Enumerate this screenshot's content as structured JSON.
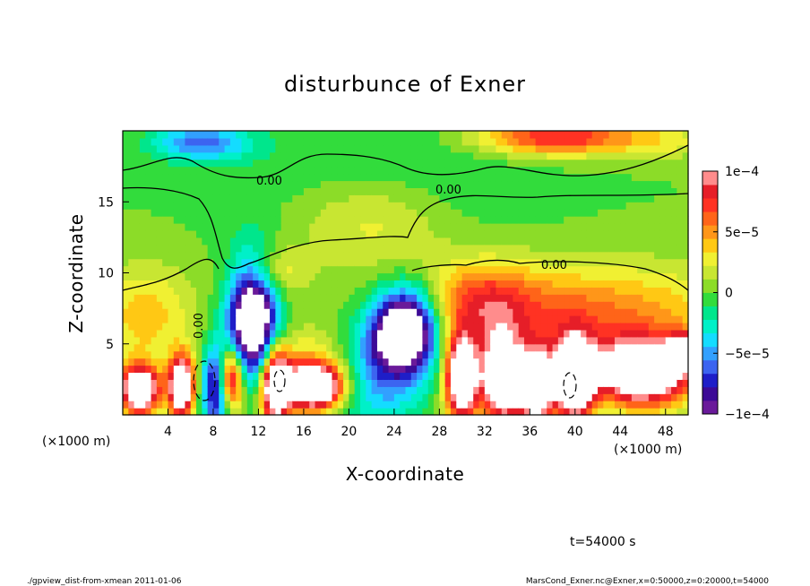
{
  "chart_data": {
    "type": "heatmap",
    "title": "disturbunce of Exner",
    "xlabel": "X-coordinate",
    "ylabel": "Z-coordinate",
    "x_unit": "(×1000 m)",
    "y_unit": "(×1000 m)",
    "xlim": [
      0,
      50
    ],
    "ylim": [
      0,
      20
    ],
    "x_ticks": [
      4,
      8,
      12,
      16,
      20,
      24,
      28,
      32,
      36,
      40,
      44,
      48
    ],
    "y_ticks": [
      5,
      10,
      15
    ],
    "colorbar": {
      "range": [
        -0.0001,
        0.0001
      ],
      "ticks": [
        {
          "value": 0.0001,
          "label": "1e−4"
        },
        {
          "value": 5e-05,
          "label": "5e−5"
        },
        {
          "value": 0,
          "label": "0"
        },
        {
          "value": -5e-05,
          "label": "−5e−5"
        },
        {
          "value": -0.0001,
          "label": "−1e−4"
        }
      ],
      "colors": [
        "#6a1a9a",
        "#3c0a96",
        "#1e1ec8",
        "#3c64f0",
        "#32a0ff",
        "#14dcff",
        "#00f0c8",
        "#00e68c",
        "#32dc3c",
        "#8cdc28",
        "#c8e632",
        "#f0f032",
        "#ffc814",
        "#ff9619",
        "#ff6419",
        "#ff3223",
        "#e61e28",
        "#ff8c8c"
      ]
    },
    "contour_labels": [
      "0.00",
      "0.00",
      "0.00",
      "0.00"
    ],
    "blobs": [
      {
        "x": 23,
        "z": 16.5,
        "sx": 8,
        "sz": 3,
        "a": -2e-05
      },
      {
        "x": 7,
        "z": 19.2,
        "sx": 3,
        "sz": 0.9,
        "a": -6e-05
      },
      {
        "x": 38.5,
        "z": 19.6,
        "sx": 5,
        "sz": 0.9,
        "a": 8e-05
      },
      {
        "x": 48,
        "z": 19.3,
        "sx": 3,
        "sz": 0.9,
        "a": 2e-05
      },
      {
        "x": 22,
        "z": 14,
        "sx": 5,
        "sz": 2.5,
        "a": 3.5e-05
      },
      {
        "x": 13,
        "z": 10,
        "sx": 2,
        "sz": 1.2,
        "a": 4e-05
      },
      {
        "x": 40,
        "z": 7,
        "sx": 10,
        "sz": 2.5,
        "a": 6e-05
      },
      {
        "x": 32,
        "z": 8,
        "sx": 3,
        "sz": 2,
        "a": 4.5e-05
      },
      {
        "x": 2,
        "z": 7,
        "sx": 3,
        "sz": 2.5,
        "a": 4e-05
      },
      {
        "x": 18,
        "z": 3,
        "sx": 4,
        "sz": 2,
        "a": 6e-05
      },
      {
        "x": 11.5,
        "z": 6.5,
        "sx": 1.5,
        "sz": 3,
        "a": -0.00016
      },
      {
        "x": 25,
        "z": 6,
        "sx": 2,
        "sz": 2,
        "a": -0.00016
      },
      {
        "x": 22,
        "z": 3,
        "sx": 3,
        "sz": 2.5,
        "a": -8e-05
      },
      {
        "x": 8.5,
        "z": 2,
        "sx": 1,
        "sz": 2,
        "a": -0.00012
      },
      {
        "x": 1.5,
        "z": 1.8,
        "sx": 1.2,
        "sz": 1.2,
        "a": 0.00016
      },
      {
        "x": 5.2,
        "z": 2,
        "sx": 0.8,
        "sz": 1.5,
        "a": 0.00016
      },
      {
        "x": 9.5,
        "z": 2.5,
        "sx": 0.8,
        "sz": 1.6,
        "a": 0.00016
      },
      {
        "x": 13.5,
        "z": 2,
        "sx": 0.9,
        "sz": 1.8,
        "a": 0.00016
      },
      {
        "x": 17,
        "z": 2,
        "sx": 1.6,
        "sz": 1,
        "a": 0.00016
      },
      {
        "x": 30,
        "z": 2.5,
        "sx": 1,
        "sz": 2,
        "a": 0.00016
      },
      {
        "x": 33.5,
        "z": 2.5,
        "sx": 1.2,
        "sz": 2,
        "a": 0.00016
      },
      {
        "x": 36.5,
        "z": 2,
        "sx": 1.2,
        "sz": 1.8,
        "a": 0.00016
      },
      {
        "x": 40,
        "z": 2.5,
        "sx": 1.2,
        "sz": 2,
        "a": 0.00016
      },
      {
        "x": 46,
        "z": 3,
        "sx": 3,
        "sz": 1.6,
        "a": 0.00016
      },
      {
        "x": 49.5,
        "z": 4.5,
        "sx": 0.8,
        "sz": 0.8,
        "a": 0.00012
      }
    ]
  },
  "time_label": "t=54000 s",
  "footer": {
    "left": "./gpview_dist-from-xmean  2011-01-06",
    "right": "MarsCond_Exner.nc@Exner,x=0:50000,z=0:20000,t=54000"
  }
}
